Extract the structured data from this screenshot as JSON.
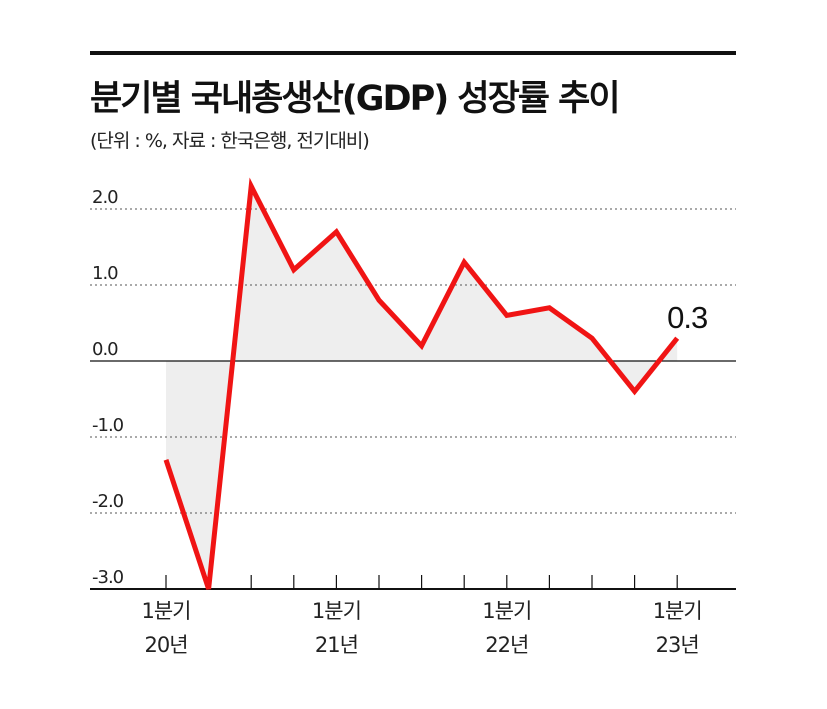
{
  "header": {
    "title": "분기별 국내총생산(GDP) 성장률 추이",
    "subtitle": "(단위 : %, 자료 : 한국은행, 전기대비)"
  },
  "chart_data": {
    "type": "area",
    "title": "분기별 국내총생산(GDP) 성장률 추이",
    "unit": "%",
    "source": "한국은행",
    "basis": "전기대비",
    "x": [
      "20Q1",
      "20Q2",
      "20Q3",
      "20Q4",
      "21Q1",
      "21Q2",
      "21Q3",
      "21Q4",
      "22Q1",
      "22Q2",
      "22Q3",
      "22Q4",
      "23Q1"
    ],
    "values": [
      -1.3,
      -3.0,
      2.3,
      1.2,
      1.7,
      0.8,
      0.2,
      1.3,
      0.6,
      0.7,
      0.3,
      -0.4,
      0.3
    ],
    "ylim": [
      -3.0,
      2.0
    ],
    "yticks": [
      {
        "value": 2.0,
        "label": "2.0"
      },
      {
        "value": 1.0,
        "label": "1.0"
      },
      {
        "value": 0.0,
        "label": "0.0"
      },
      {
        "value": -1.0,
        "label": "-1.0"
      },
      {
        "value": -2.0,
        "label": "-2.0"
      },
      {
        "value": -3.0,
        "label": "-3.0"
      }
    ],
    "category_labels": [
      {
        "index": 0,
        "line1": "1분기",
        "line2": "20년"
      },
      {
        "index": 4,
        "line1": "1분기",
        "line2": "21년"
      },
      {
        "index": 8,
        "line1": "1분기",
        "line2": "22년"
      },
      {
        "index": 12,
        "line1": "1분기",
        "line2": "23년"
      }
    ],
    "end_label": "0.3",
    "grid": true,
    "colors": {
      "line": "#f01414",
      "area": "#eeeeee",
      "grid": "#555555",
      "axis": "#111111"
    }
  }
}
